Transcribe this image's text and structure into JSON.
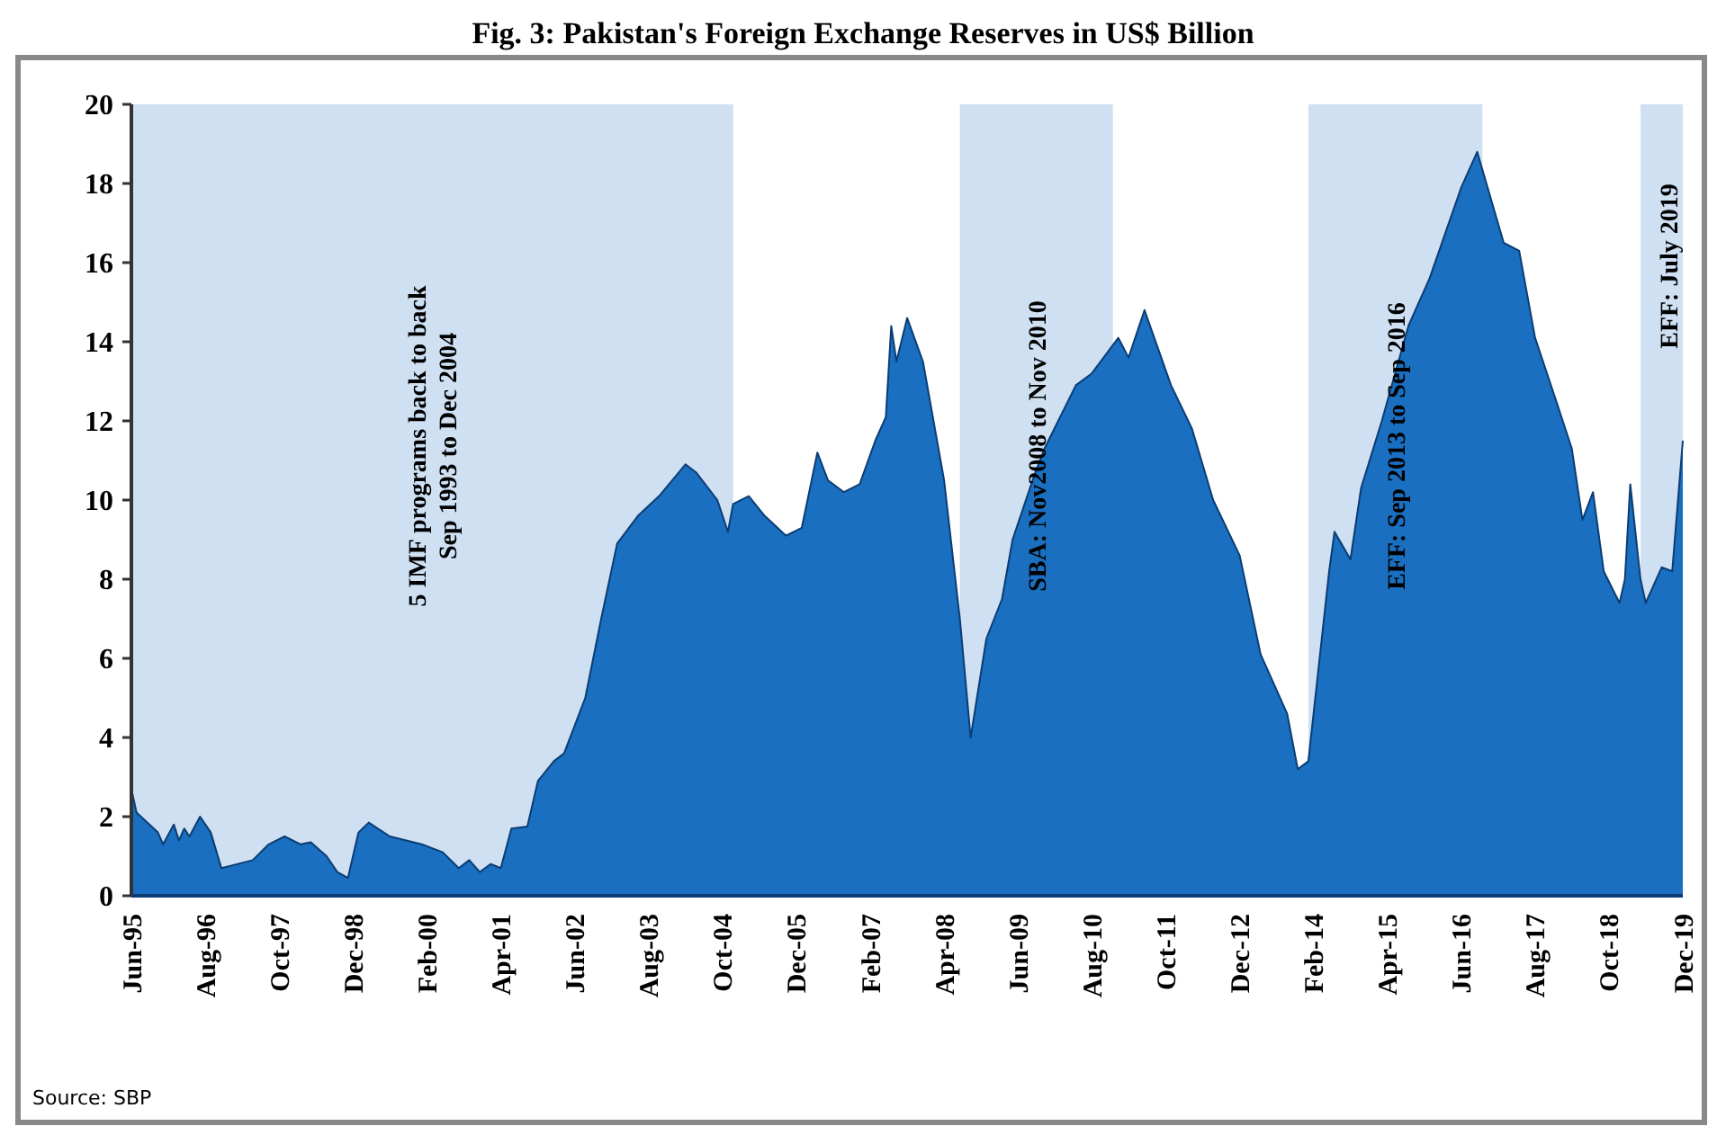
{
  "chart_data": {
    "type": "area",
    "title": "Fig. 3: Pakistan's Foreign Exchange Reserves in US$ Billion",
    "x": [
      "1995-06",
      "1995-07",
      "1995-11",
      "1995-12",
      "1996-02",
      "1996-03",
      "1996-04",
      "1996-05",
      "1996-07",
      "1996-09",
      "1996-11",
      "1997-05",
      "1997-08",
      "1997-11",
      "1998-02",
      "1998-04",
      "1998-07",
      "1998-09",
      "1998-11",
      "1999-01",
      "1999-03",
      "1999-07",
      "2000-01",
      "2000-05",
      "2000-08",
      "2000-10",
      "2000-12",
      "2001-02",
      "2001-04",
      "2001-06",
      "2001-09",
      "2001-11",
      "2002-02",
      "2002-04",
      "2002-08",
      "2002-11",
      "2003-02",
      "2003-06",
      "2003-10",
      "2004-03",
      "2004-05",
      "2004-09",
      "2004-11",
      "2004-12",
      "2005-03",
      "2005-06",
      "2005-10",
      "2006-01",
      "2006-04",
      "2006-06",
      "2006-09",
      "2006-12",
      "2007-03",
      "2007-05",
      "2007-06",
      "2007-07",
      "2007-09",
      "2007-12",
      "2008-04",
      "2008-07",
      "2008-09",
      "2008-12",
      "2009-03",
      "2009-05",
      "2009-09",
      "2009-11",
      "2010-05",
      "2010-08",
      "2011-01",
      "2011-03",
      "2011-06",
      "2011-11",
      "2012-03",
      "2012-07",
      "2012-12",
      "2013-04",
      "2013-09",
      "2013-11",
      "2014-01",
      "2014-05",
      "2014-06",
      "2014-09",
      "2014-11",
      "2015-03",
      "2015-08",
      "2015-12",
      "2016-06",
      "2016-09",
      "2017-02",
      "2017-05",
      "2017-08",
      "2017-12",
      "2018-03",
      "2018-05",
      "2018-07",
      "2018-09",
      "2018-12",
      "2019-01",
      "2019-02",
      "2019-04",
      "2019-05",
      "2019-08",
      "2019-10",
      "2019-12"
    ],
    "series": [
      {
        "color": "#1a6fc0",
        "values": [
          2.7,
          2.1,
          1.6,
          1.3,
          1.8,
          1.4,
          1.7,
          1.5,
          2.0,
          1.6,
          0.7,
          0.9,
          1.3,
          1.5,
          1.3,
          1.35,
          1.0,
          0.6,
          0.45,
          1.6,
          1.85,
          1.5,
          1.3,
          1.1,
          0.7,
          0.9,
          0.6,
          0.8,
          0.7,
          1.7,
          1.75,
          2.9,
          3.4,
          3.6,
          5.0,
          7.0,
          8.9,
          9.6,
          10.1,
          10.9,
          10.7,
          10.0,
          9.2,
          9.9,
          10.1,
          9.6,
          9.1,
          9.3,
          11.2,
          10.5,
          10.2,
          10.4,
          11.5,
          12.1,
          14.4,
          13.5,
          14.6,
          13.5,
          10.5,
          7.0,
          4.0,
          6.5,
          7.5,
          9.0,
          10.6,
          11.3,
          12.9,
          13.2,
          14.1,
          13.6,
          14.8,
          12.9,
          11.8,
          10.0,
          8.6,
          6.1,
          4.6,
          3.2,
          3.4,
          8.2,
          9.2,
          8.5,
          10.3,
          12.0,
          14.4,
          15.6,
          17.9,
          18.8,
          16.5,
          16.3,
          14.1,
          12.5,
          11.3,
          9.5,
          10.2,
          8.2,
          7.4,
          8.0,
          10.4,
          8.0,
          7.4,
          8.3,
          8.2,
          11.5
        ]
      }
    ],
    "xlim": [
      "1995-06",
      "2019-12"
    ],
    "xticks": [
      {
        "value": "1995-06",
        "label": "Jun-95"
      },
      {
        "value": "1996-08",
        "label": "Aug-96"
      },
      {
        "value": "1997-10",
        "label": "Oct-97"
      },
      {
        "value": "1998-12",
        "label": "Dec-98"
      },
      {
        "value": "2000-02",
        "label": "Feb-00"
      },
      {
        "value": "2001-04",
        "label": "Apr-01"
      },
      {
        "value": "2002-06",
        "label": "Jun-02"
      },
      {
        "value": "2003-08",
        "label": "Aug-03"
      },
      {
        "value": "2004-10",
        "label": "Oct-04"
      },
      {
        "value": "2005-12",
        "label": "Dec-05"
      },
      {
        "value": "2007-02",
        "label": "Feb-07"
      },
      {
        "value": "2008-04",
        "label": "Apr-08"
      },
      {
        "value": "2009-06",
        "label": "Jun-09"
      },
      {
        "value": "2010-08",
        "label": "Aug-10"
      },
      {
        "value": "2011-10",
        "label": "Oct-11"
      },
      {
        "value": "2012-12",
        "label": "Dec-12"
      },
      {
        "value": "2014-02",
        "label": "Feb-14"
      },
      {
        "value": "2015-04",
        "label": "Apr-15"
      },
      {
        "value": "2016-06",
        "label": "Jun-16"
      },
      {
        "value": "2017-08",
        "label": "Aug-17"
      },
      {
        "value": "2018-10",
        "label": "Oct-18"
      },
      {
        "value": "2019-12",
        "label": "Dec-19"
      }
    ],
    "ylim": [
      0,
      20
    ],
    "yticks": [
      0,
      2,
      4,
      6,
      8,
      10,
      12,
      14,
      16,
      18,
      20
    ],
    "bands": [
      {
        "axis": "x",
        "from": "1995-06",
        "to": "2004-12",
        "label": "5 IMF programs back to back\nSep 1993 to Dec 2004",
        "color": "#cfe0f2"
      },
      {
        "axis": "x",
        "from": "2008-07",
        "to": "2010-12",
        "label": "SBA: Nov2008 to Nov 2010",
        "color": "#cfe0f2"
      },
      {
        "axis": "x",
        "from": "2014-01",
        "to": "2016-10",
        "label": "EFF: Sep 2013 to Sep 2016",
        "color": "#cfe0f2"
      },
      {
        "axis": "x",
        "from": "2019-04",
        "to": "2019-12",
        "label": "EFF: July 2019",
        "color": "#cfe0f2"
      }
    ],
    "annotations": [
      "Source: SBP"
    ]
  }
}
